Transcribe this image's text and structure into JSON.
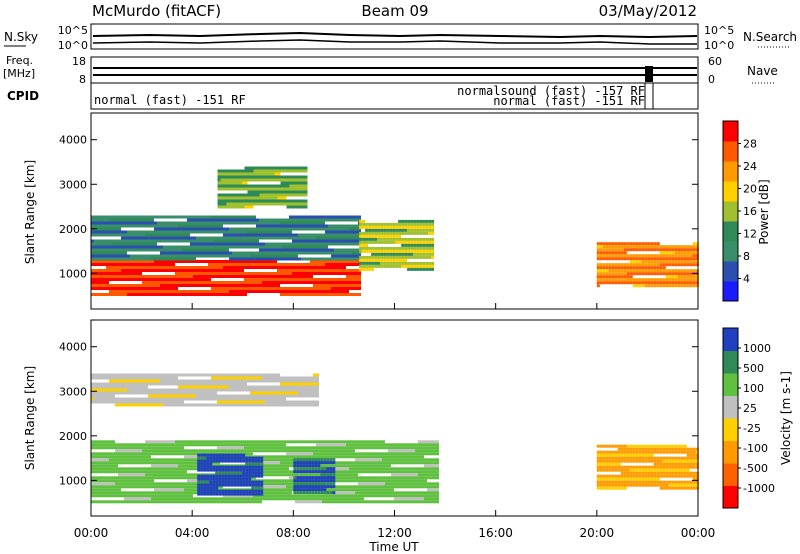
{
  "header": {
    "station": "McMurdo (fitACF)",
    "beam": "Beam 09",
    "date": "03/May/2012"
  },
  "noise_panel": {
    "left_label": "N.Sky",
    "right_label": "N.Search",
    "left_ticks": [
      "10^5",
      "10^0"
    ],
    "right_ticks": [
      "10^5",
      "10^0"
    ]
  },
  "freq_panel": {
    "left_label_1": "Freq.",
    "left_label_2": "[MHz]",
    "left_ticks": [
      "18",
      "8"
    ],
    "right_label": "Nave",
    "right_ticks": [
      "60",
      "0"
    ]
  },
  "cpid_panel": {
    "label": "CPID",
    "segments": [
      {
        "text": "normal (fast) -151 RF",
        "start": 0,
        "end": 22.1
      },
      {
        "text": "normalsound (fast) -157 RF",
        "start": 22.1,
        "end": 22.5
      },
      {
        "text": "normal (fast) -151 RF",
        "start": 22.5,
        "end": 24
      }
    ]
  },
  "chart_data": [
    {
      "type": "heatmap",
      "title": "",
      "ylabel": "Slant Range [km]",
      "xlabel": "",
      "xlim": [
        0,
        24
      ],
      "ylim": [
        200,
        4600
      ],
      "yticks": [
        1000,
        2000,
        3000,
        4000
      ],
      "colorbar": {
        "label": "Power [dB]",
        "ticks": [
          4,
          8,
          12,
          16,
          20,
          24,
          28
        ],
        "range": [
          0,
          32
        ],
        "colors": [
          "#1a1aff",
          "#2a4fb0",
          "#3a8f6a",
          "#2e8b57",
          "#a0c030",
          "#ffd000",
          "#ff9a00",
          "#ff5a00",
          "#ff0000"
        ]
      },
      "regions": [
        {
          "t0": 0.0,
          "t1": 10.6,
          "r0": 500,
          "r1": 1300,
          "value": 28
        },
        {
          "t0": 0.0,
          "t1": 10.6,
          "r0": 1300,
          "r1": 2300,
          "value": 8
        },
        {
          "t0": 5.0,
          "t1": 8.5,
          "r0": 2500,
          "r1": 3400,
          "value": 14
        },
        {
          "t0": 10.6,
          "t1": 13.5,
          "r0": 1100,
          "r1": 2200,
          "value": 16
        },
        {
          "t0": 20.0,
          "t1": 24.0,
          "r0": 700,
          "r1": 1700,
          "value": 24
        }
      ]
    },
    {
      "type": "heatmap",
      "title": "",
      "ylabel": "Slant Range [km]",
      "xlabel": "Time UT",
      "xlim": [
        0,
        24
      ],
      "ylim": [
        200,
        4600
      ],
      "yticks": [
        1000,
        2000,
        3000,
        4000
      ],
      "xticks": [
        "00:00",
        "04:00",
        "08:00",
        "12:00",
        "16:00",
        "20:00",
        "00:00"
      ],
      "colorbar": {
        "label": "Velocity [m s-1]",
        "ticks": [
          1000,
          500,
          100,
          25,
          -25,
          -100,
          -500,
          -1000
        ],
        "range": [
          -1000,
          1000
        ],
        "colors": [
          "#2040c0",
          "#2e8b57",
          "#60c040",
          "#c0c0c0",
          "#ffd000",
          "#ff9a00",
          "#ff6000",
          "#ff0000"
        ]
      },
      "regions": [
        {
          "t0": 0.0,
          "t1": 13.7,
          "r0": 500,
          "r1": 1900,
          "value": 300
        },
        {
          "t0": 4.2,
          "t1": 6.8,
          "r0": 700,
          "r1": 1600,
          "value": 900
        },
        {
          "t0": 8.0,
          "t1": 9.6,
          "r0": 700,
          "r1": 1500,
          "value": 800
        },
        {
          "t0": 20.0,
          "t1": 24.0,
          "r0": 800,
          "r1": 1800,
          "value": -300
        },
        {
          "t0": 0.0,
          "t1": 9.0,
          "r0": 2700,
          "r1": 3400,
          "value": 20
        }
      ]
    }
  ]
}
